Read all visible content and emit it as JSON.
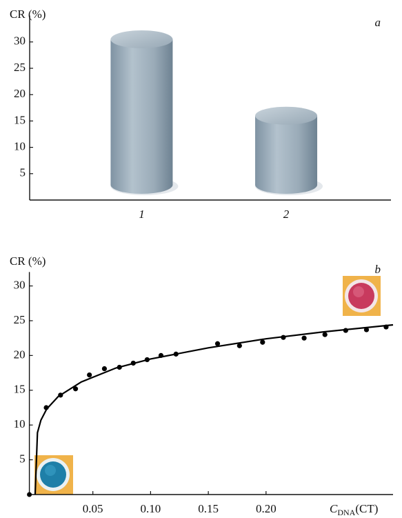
{
  "chart_data": [
    {
      "type": "bar",
      "panel_label": "a",
      "ylabel": "CR (%)",
      "categories": [
        "1",
        "2"
      ],
      "values": [
        30.5,
        16
      ],
      "color": "#9aabb8",
      "ylim": [
        0,
        35
      ],
      "yticks": [
        5,
        10,
        15,
        20,
        25,
        30
      ]
    },
    {
      "type": "scatter",
      "panel_label": "b",
      "ylabel": "CR (%)",
      "xlabel": {
        "symbol": "C",
        "subscript": "DNA",
        "unit": "(CT)"
      },
      "xlim": [
        -0.005,
        0.31
      ],
      "xticks": [
        {
          "value": 0.05,
          "label": "0.05"
        },
        {
          "value": 0.1,
          "label": "0.10"
        },
        0.15,
        {
          "value": 0.2,
          "label": "0.20"
        }
      ],
      "ylim": [
        0,
        32
      ],
      "yticks": [
        5,
        10,
        15,
        20,
        25,
        30
      ],
      "series": [
        {
          "type": "scatter",
          "color": "#000000",
          "x": [
            0.0096,
            0.022,
            0.035,
            0.047,
            0.06,
            0.073,
            0.085,
            0.097,
            0.109,
            0.122,
            0.158,
            0.177,
            0.197,
            0.215,
            0.233,
            0.251,
            0.269,
            0.287,
            0.304
          ],
          "values": [
            12.5,
            14.3,
            15.2,
            17.2,
            18.1,
            18.3,
            18.9,
            19.4,
            20.0,
            20.2,
            21.7,
            21.4,
            21.9,
            22.6,
            22.5,
            23.0,
            23.6,
            23.7,
            24.1
          ]
        },
        {
          "type": "line",
          "color": "#000000",
          "x": [
            0,
            0.002,
            0.005,
            0.01,
            0.02,
            0.04,
            0.07,
            0.1,
            0.15,
            0.2,
            0.25,
            0.31
          ],
          "values": [
            0,
            8.9,
            10.7,
            12.3,
            14.1,
            16.2,
            18.2,
            19.5,
            21.1,
            22.4,
            23.4,
            24.4
          ]
        }
      ]
    }
  ]
}
